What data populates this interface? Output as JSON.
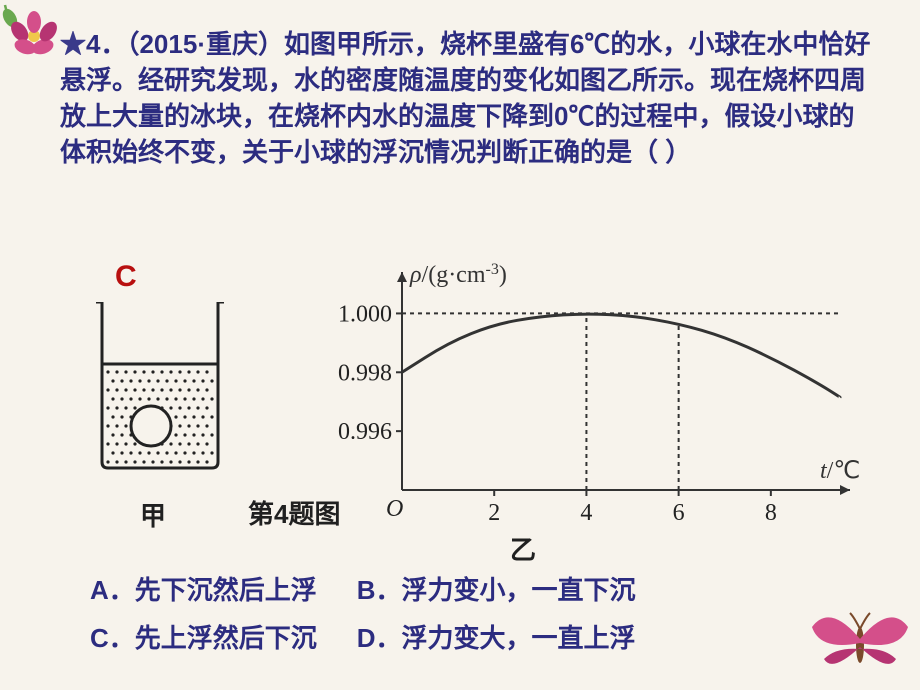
{
  "question": {
    "star": "★",
    "text": "4．（2015·重庆）如图甲所示，烧杯里盛有6℃的水，小球在水中恰好悬浮。经研究发现，水的密度随温度的变化如图乙所示。现在烧杯四周放上大量的冰块，在烧杯内水的温度下降到0℃的过程中，假设小球的体积始终不变，关于小球的浮沉情况判断正确的是（  ）"
  },
  "answer_letter": "C",
  "figure_caption": "第4题图",
  "caption_jia": "甲",
  "caption_yi": "乙",
  "chart": {
    "type": "line",
    "y_label": "ρ/(g·cm",
    "y_exp": "-3",
    "y_label_close": ")",
    "x_label": "t/℃",
    "origin_label": "O",
    "y_ticks": [
      "0.996",
      "0.998",
      "1.000"
    ],
    "y_tick_vals": [
      0.996,
      0.998,
      1.0
    ],
    "x_ticks": [
      "2",
      "4",
      "6",
      "8"
    ],
    "x_tick_vals": [
      2,
      4,
      6,
      8
    ],
    "xlim": [
      0,
      9.5
    ],
    "ylim": [
      0.994,
      1.001
    ],
    "curve_points": [
      [
        0.0,
        0.998
      ],
      [
        1.0,
        0.999
      ],
      [
        2.0,
        0.99963
      ],
      [
        3.0,
        0.9999
      ],
      [
        4.0,
        1.0
      ],
      [
        5.0,
        0.99992
      ],
      [
        6.0,
        0.99965
      ],
      [
        7.0,
        0.9992
      ],
      [
        8.0,
        0.9985
      ],
      [
        9.0,
        0.99765
      ],
      [
        9.5,
        0.99715
      ]
    ],
    "dashed_lines": [
      {
        "type": "horiz",
        "y": 1.0,
        "x_from": 0,
        "x_to": 9.5
      },
      {
        "type": "vert",
        "x": 4,
        "y_from": 0.994,
        "y_to": 1.0
      },
      {
        "type": "vert",
        "x": 6,
        "y_from": 0.994,
        "y_to": 0.99965
      }
    ],
    "stroke_color": "#333333",
    "axis_color": "#333333",
    "dash_pattern": "4 4",
    "line_width": 2,
    "background_color": "#f7f3ec"
  },
  "options": {
    "A": "A．先下沉然后上浮",
    "B": "B．浮力变小，一直下沉",
    "C": "C．先上浮然后下沉",
    "D": "D．浮力变大，一直上浮"
  },
  "flower_colors": {
    "pink": "#d44f8a",
    "dark_pink": "#b63472",
    "green": "#6aa84f",
    "brown": "#7a4a2b",
    "yellow": "#f0c84b"
  }
}
